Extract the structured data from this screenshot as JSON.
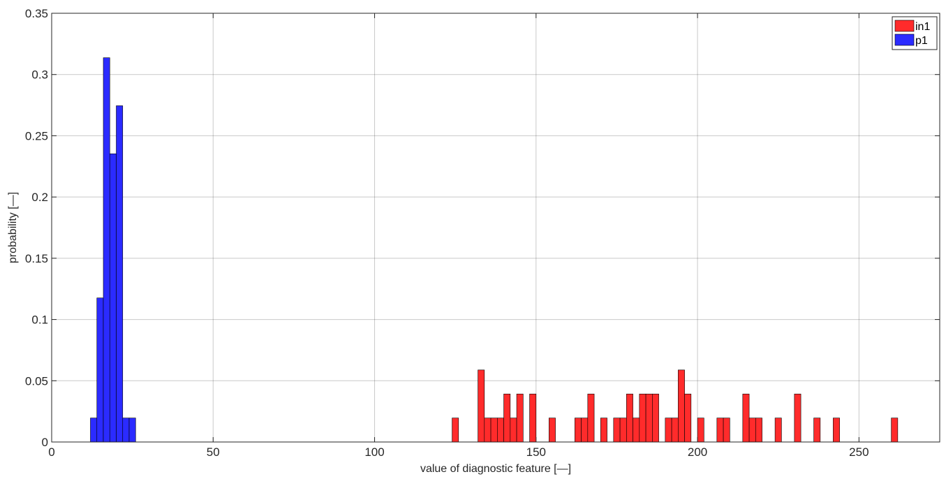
{
  "chart_data": {
    "type": "bar",
    "xlabel": "value of diagnostic feature [—]",
    "ylabel": "probability [—]",
    "xlim": [
      0,
      275
    ],
    "ylim": [
      0,
      0.35
    ],
    "x_ticks": [
      "0",
      "50",
      "100",
      "150",
      "200",
      "250"
    ],
    "y_ticks": [
      "0",
      "0.05",
      "0.1",
      "0.15",
      "0.2",
      "0.25",
      "0.3",
      "0.35"
    ],
    "grid": true,
    "legend_position": "top-right",
    "bin_width": 2,
    "series": [
      {
        "name": "in1",
        "color": "#ff2b2b",
        "bars": [
          {
            "x": 124,
            "y": 0.0196
          },
          {
            "x": 132,
            "y": 0.0588
          },
          {
            "x": 134,
            "y": 0.0196
          },
          {
            "x": 136,
            "y": 0.0196
          },
          {
            "x": 138,
            "y": 0.0196
          },
          {
            "x": 140,
            "y": 0.0392
          },
          {
            "x": 142,
            "y": 0.0196
          },
          {
            "x": 144,
            "y": 0.0392
          },
          {
            "x": 148,
            "y": 0.0392
          },
          {
            "x": 154,
            "y": 0.0196
          },
          {
            "x": 162,
            "y": 0.0196
          },
          {
            "x": 164,
            "y": 0.0196
          },
          {
            "x": 166,
            "y": 0.0392
          },
          {
            "x": 170,
            "y": 0.0196
          },
          {
            "x": 174,
            "y": 0.0196
          },
          {
            "x": 176,
            "y": 0.0196
          },
          {
            "x": 178,
            "y": 0.0392
          },
          {
            "x": 180,
            "y": 0.0196
          },
          {
            "x": 182,
            "y": 0.0392
          },
          {
            "x": 184,
            "y": 0.0392
          },
          {
            "x": 186,
            "y": 0.0392
          },
          {
            "x": 190,
            "y": 0.0196
          },
          {
            "x": 192,
            "y": 0.0196
          },
          {
            "x": 194,
            "y": 0.0588
          },
          {
            "x": 196,
            "y": 0.0392
          },
          {
            "x": 200,
            "y": 0.0196
          },
          {
            "x": 206,
            "y": 0.0196
          },
          {
            "x": 208,
            "y": 0.0196
          },
          {
            "x": 214,
            "y": 0.0392
          },
          {
            "x": 216,
            "y": 0.0196
          },
          {
            "x": 218,
            "y": 0.0196
          },
          {
            "x": 224,
            "y": 0.0196
          },
          {
            "x": 230,
            "y": 0.0392
          },
          {
            "x": 236,
            "y": 0.0196
          },
          {
            "x": 242,
            "y": 0.0196
          },
          {
            "x": 260,
            "y": 0.0196
          }
        ]
      },
      {
        "name": "p1",
        "color": "#2b2bff",
        "bars": [
          {
            "x": 12,
            "y": 0.0196
          },
          {
            "x": 14,
            "y": 0.1176
          },
          {
            "x": 16,
            "y": 0.3137
          },
          {
            "x": 18,
            "y": 0.2353
          },
          {
            "x": 20,
            "y": 0.2745
          },
          {
            "x": 22,
            "y": 0.0196
          },
          {
            "x": 24,
            "y": 0.0196
          }
        ]
      }
    ]
  }
}
